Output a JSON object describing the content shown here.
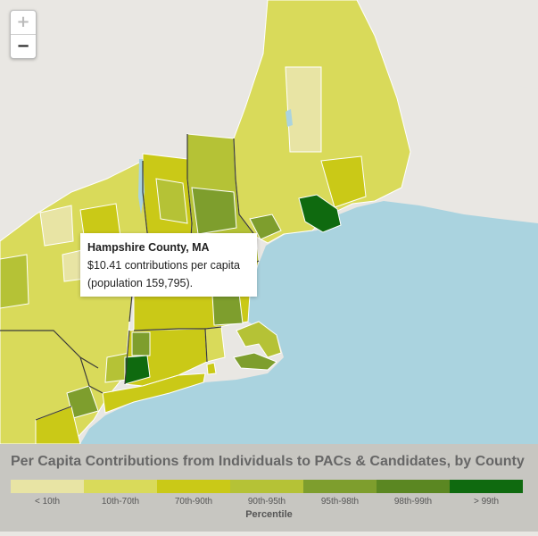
{
  "map": {
    "zoom_in_label": "+",
    "zoom_out_label": "−",
    "colors": {
      "water": "#aad3df",
      "land_other": "#e9e7e3",
      "border": "#ffffff",
      "state_border": "#3a3a3a"
    }
  },
  "tooltip": {
    "title": "Hampshire County, MA",
    "line1": "$10.41 contributions per capita",
    "line2": "(population 159,795)."
  },
  "legend": {
    "title": "Per Capita Contributions from Individuals to PACs & Candidates, by County",
    "caption": "Percentile",
    "classes": [
      {
        "label": "< 10th",
        "color": "#e8e4a4"
      },
      {
        "label": "10th-70th",
        "color": "#d9da5a"
      },
      {
        "label": "70th-90th",
        "color": "#cac917"
      },
      {
        "label": "90th-95th",
        "color": "#b5c236"
      },
      {
        "label": "95th-98th",
        "color": "#7e9e2d"
      },
      {
        "label": "98th-99th",
        "color": "#5b8722"
      },
      {
        "label": "> 99th",
        "color": "#0f6a0f"
      }
    ]
  }
}
